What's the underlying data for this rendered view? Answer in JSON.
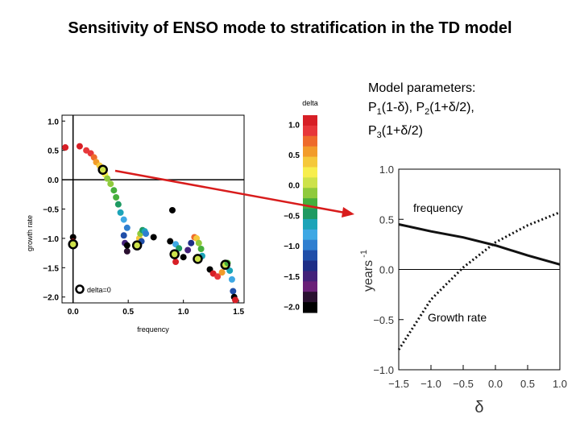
{
  "title": "Sensitivity of ENSO mode to stratification in the TD model",
  "params": {
    "heading": "Model parameters:",
    "p1_prefix": "P",
    "p1_sub": "1",
    "p1_expr": "(1-δ),",
    "p2_prefix": "P",
    "p2_sub": "2",
    "p2_expr": "(1+δ/2),",
    "p3_prefix": "P",
    "p3_sub": "3",
    "p3_expr": "(1+δ/2)"
  },
  "chart_data": [
    {
      "type": "scatter",
      "title": "",
      "xlabel": "frequency",
      "ylabel": "growth rate",
      "xlim": [
        -0.1,
        1.55
      ],
      "ylim": [
        -2.1,
        1.1
      ],
      "xticks": [
        "0.0",
        "0.5",
        "1.0",
        "1.5"
      ],
      "yticks": [
        "1.0",
        "0.5",
        "0.0",
        "−0.5",
        "−1.0",
        "−1.5",
        "−2.0"
      ],
      "legend": "delta=0",
      "grid": false,
      "reference_lines": {
        "x": 0.0,
        "y": 0.0
      },
      "points": [
        {
          "x": -0.07,
          "y": 0.55,
          "d": 1.0
        },
        {
          "x": 0.06,
          "y": 0.57,
          "d": 1.0
        },
        {
          "x": 0.12,
          "y": 0.5,
          "d": 0.9
        },
        {
          "x": 0.16,
          "y": 0.45,
          "d": 0.8
        },
        {
          "x": 0.19,
          "y": 0.38,
          "d": 0.7
        },
        {
          "x": 0.21,
          "y": 0.3,
          "d": 0.5
        },
        {
          "x": 0.24,
          "y": 0.24,
          "d": 0.3
        },
        {
          "x": 0.27,
          "y": 0.17,
          "d": 0.0
        },
        {
          "x": 0.29,
          "y": 0.09,
          "d": 0.1
        },
        {
          "x": 0.31,
          "y": 0.02,
          "d": -0.1
        },
        {
          "x": 0.34,
          "y": -0.07,
          "d": -0.2
        },
        {
          "x": 0.37,
          "y": -0.18,
          "d": -0.3
        },
        {
          "x": 0.39,
          "y": -0.3,
          "d": -0.4
        },
        {
          "x": 0.41,
          "y": -0.42,
          "d": -0.5
        },
        {
          "x": 0.43,
          "y": -0.56,
          "d": -0.6
        },
        {
          "x": 0.46,
          "y": -0.68,
          "d": -0.8
        },
        {
          "x": 0.49,
          "y": -0.82,
          "d": -1.0
        },
        {
          "x": 0.46,
          "y": -0.95,
          "d": -1.2
        },
        {
          "x": 0.47,
          "y": -1.08,
          "d": -1.5
        },
        {
          "x": 0.49,
          "y": -1.22,
          "d": -1.8
        },
        {
          "x": 0.6,
          "y": -1.0,
          "d": 0.4
        },
        {
          "x": 0.61,
          "y": -0.92,
          "d": -0.2
        },
        {
          "x": 0.63,
          "y": -0.86,
          "d": -0.5
        },
        {
          "x": 0.65,
          "y": -0.88,
          "d": -0.7
        },
        {
          "x": 0.66,
          "y": -0.92,
          "d": -1.0
        },
        {
          "x": 0.62,
          "y": -1.05,
          "d": -1.2
        },
        {
          "x": 0.59,
          "y": -1.12,
          "d": 1.0
        },
        {
          "x": 0.58,
          "y": -1.12,
          "d": 0.0
        },
        {
          "x": 0.49,
          "y": -1.12,
          "d": -2.0
        },
        {
          "x": 0.73,
          "y": -0.98,
          "d": -2.0
        },
        {
          "x": 0.9,
          "y": -0.52,
          "d": -2.0
        },
        {
          "x": 0.88,
          "y": -1.05,
          "d": -2.0
        },
        {
          "x": 0.93,
          "y": -1.1,
          "d": -0.9
        },
        {
          "x": 0.96,
          "y": -1.17,
          "d": -0.5
        },
        {
          "x": 0.92,
          "y": -1.27,
          "d": 0.0
        },
        {
          "x": 0.93,
          "y": -1.4,
          "d": 1.0
        },
        {
          "x": 1.0,
          "y": -1.32,
          "d": -2.0
        },
        {
          "x": 1.04,
          "y": -1.2,
          "d": -1.5
        },
        {
          "x": 1.07,
          "y": -1.08,
          "d": -1.3
        },
        {
          "x": 1.1,
          "y": -0.98,
          "d": 0.6
        },
        {
          "x": 1.12,
          "y": -1.0,
          "d": 0.4
        },
        {
          "x": 1.14,
          "y": -1.08,
          "d": -0.1
        },
        {
          "x": 1.16,
          "y": -1.18,
          "d": -0.4
        },
        {
          "x": 1.17,
          "y": -1.3,
          "d": -0.7
        },
        {
          "x": 1.13,
          "y": -1.35,
          "d": 0.0
        },
        {
          "x": 1.24,
          "y": -1.53,
          "d": -2.0
        },
        {
          "x": 1.27,
          "y": -1.6,
          "d": 1.0
        },
        {
          "x": 1.31,
          "y": -1.65,
          "d": 0.8
        },
        {
          "x": 1.35,
          "y": -1.58,
          "d": 0.5
        },
        {
          "x": 1.38,
          "y": -1.45,
          "d": 0.0
        },
        {
          "x": 1.4,
          "y": -1.42,
          "d": -0.3
        },
        {
          "x": 1.42,
          "y": -1.55,
          "d": -0.6
        },
        {
          "x": 1.44,
          "y": -1.7,
          "d": -0.9
        },
        {
          "x": 1.45,
          "y": -1.9,
          "d": -1.2
        },
        {
          "x": 1.46,
          "y": -2.0,
          "d": -2.0
        },
        {
          "x": 1.47,
          "y": -2.05,
          "d": 1.0
        },
        {
          "x": 0.0,
          "y": -0.98,
          "d": -2.0
        },
        {
          "x": 0.0,
          "y": -1.06,
          "d": 1.0
        },
        {
          "x": 0.0,
          "y": -1.1,
          "d": 0.0
        }
      ],
      "highlighted_delta0": [
        {
          "x": 0.27,
          "y": 0.17
        },
        {
          "x": 0.58,
          "y": -1.12
        },
        {
          "x": 0.92,
          "y": -1.27
        },
        {
          "x": 1.13,
          "y": -1.35
        },
        {
          "x": 1.38,
          "y": -1.45
        },
        {
          "x": 0.0,
          "y": -1.1
        }
      ]
    },
    {
      "type": "heatmap",
      "title": "delta",
      "colorbar_ticks": [
        "1.0",
        "0.5",
        "0.0",
        "−0.5",
        "−1.0",
        "−1.5",
        "−2.0"
      ],
      "range": [
        -2.0,
        1.0
      ],
      "colors": [
        "#d71f26",
        "#e7373a",
        "#ee6a2b",
        "#f29b2a",
        "#f5c83b",
        "#f7ee4d",
        "#cde24a",
        "#8fca3c",
        "#46af3c",
        "#1e9a62",
        "#1ca4b8",
        "#3ea8e4",
        "#2f7fd0",
        "#1f4ea8",
        "#1d2d86",
        "#43217a",
        "#6a2078",
        "#2a1030",
        "#000000"
      ]
    },
    {
      "type": "line",
      "title": "",
      "xlabel": "δ",
      "ylabel": "years",
      "ylabel_sup": "-1",
      "xlim": [
        -1.5,
        1.0
      ],
      "ylim": [
        -1.0,
        1.0
      ],
      "xticks": [
        "−1.5",
        "−1.0",
        "−0.5",
        "0.0",
        "0.5",
        "1.0"
      ],
      "yticks": [
        "1.0",
        "0.5",
        "0.0",
        "−0.5",
        "−1.0"
      ],
      "reference_lines": {
        "y": 0.0
      },
      "series": [
        {
          "name": "frequency",
          "style": "solid",
          "x": [
            -1.5,
            -1.0,
            -0.5,
            0.0,
            0.5,
            1.0
          ],
          "values": [
            0.45,
            0.38,
            0.32,
            0.24,
            0.14,
            0.05
          ]
        },
        {
          "name": "Growth rate",
          "style": "dotted",
          "x": [
            -1.5,
            -1.0,
            -0.5,
            0.0,
            0.5,
            1.0
          ],
          "values": [
            -0.8,
            -0.3,
            0.02,
            0.27,
            0.44,
            0.57
          ]
        }
      ],
      "annotations": [
        "frequency",
        "Growth rate"
      ]
    }
  ]
}
